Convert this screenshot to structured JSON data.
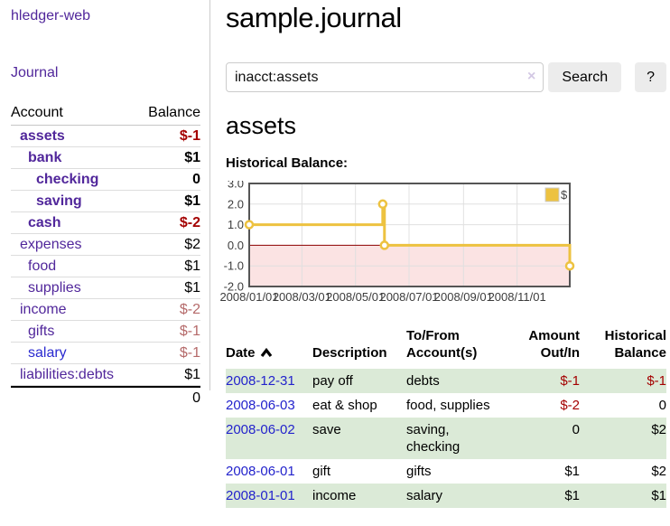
{
  "colors": {
    "link_purple": "#51279b",
    "link_blue": "#2a2ad0",
    "negative_strong": "#a40000",
    "negative_muted": "#b56a6a",
    "row_stripe_green": "#dbead7",
    "chart_gold": "#edc240"
  },
  "sidebar": {
    "brand": "hledger-web",
    "nav": {
      "journal": "Journal"
    },
    "accounts": {
      "col_account": "Account",
      "col_balance": "Balance",
      "rows": [
        {
          "label": "assets",
          "indent": 0,
          "bold": true,
          "balance": "$-1",
          "balance_style": "neg-strong",
          "link_style": "visited"
        },
        {
          "label": "bank",
          "indent": 1,
          "bold": true,
          "balance": "$1",
          "balance_style": "normal",
          "link_style": "visited"
        },
        {
          "label": "checking",
          "indent": 2,
          "bold": true,
          "balance": "0",
          "balance_style": "normal",
          "link_style": "visited"
        },
        {
          "label": "saving",
          "indent": 2,
          "bold": true,
          "balance": "$1",
          "balance_style": "normal",
          "link_style": "visited"
        },
        {
          "label": "cash",
          "indent": 1,
          "bold": true,
          "balance": "$-2",
          "balance_style": "neg-strong",
          "link_style": "visited"
        },
        {
          "label": "expenses",
          "indent": 0,
          "bold": false,
          "balance": "$2",
          "balance_style": "normal",
          "link_style": "visited"
        },
        {
          "label": "food",
          "indent": 1,
          "bold": false,
          "balance": "$1",
          "balance_style": "normal",
          "link_style": "visited"
        },
        {
          "label": "supplies",
          "indent": 1,
          "bold": false,
          "balance": "$1",
          "balance_style": "normal",
          "link_style": "visited"
        },
        {
          "label": "income",
          "indent": 0,
          "bold": false,
          "balance": "$-2",
          "balance_style": "neg-muted",
          "link_style": "visited"
        },
        {
          "label": "gifts",
          "indent": 1,
          "bold": false,
          "balance": "$-1",
          "balance_style": "neg-muted",
          "link_style": "visited"
        },
        {
          "label": "salary",
          "indent": 1,
          "bold": false,
          "balance": "$-1",
          "balance_style": "neg-muted",
          "link_style": "unvisited"
        },
        {
          "label": "liabilities:debts",
          "indent": 0,
          "bold": false,
          "balance": "$1",
          "balance_style": "normal",
          "link_style": "visited"
        }
      ],
      "total": "0"
    }
  },
  "main": {
    "title": "sample.journal",
    "search": {
      "value": "inacct:assets",
      "clear_icon": "×",
      "search_button": "Search",
      "help_button": "?"
    },
    "account_heading": "assets",
    "chart_heading": "Historical Balance:"
  },
  "chart_data": {
    "type": "line",
    "title": "Historical Balance",
    "x_type": "date",
    "xlim": [
      "2008-01-01",
      "2008-12-31"
    ],
    "ylim": [
      -2,
      3
    ],
    "y_ticks": [
      {
        "value": 3,
        "label": "3.0"
      },
      {
        "value": 2,
        "label": "2.0"
      },
      {
        "value": 1,
        "label": "1.0"
      },
      {
        "value": 0,
        "label": "0.0"
      },
      {
        "value": -1,
        "label": "-1.0"
      },
      {
        "value": -2,
        "label": "-2.0"
      }
    ],
    "x_ticks": [
      {
        "date": "2008-01-01",
        "label": "2008/01/01"
      },
      {
        "date": "2008-03-01",
        "label": "2008/03/01"
      },
      {
        "date": "2008-05-01",
        "label": "2008/05/01"
      },
      {
        "date": "2008-07-01",
        "label": "2008/07/01"
      },
      {
        "date": "2008-09-01",
        "label": "2008/09/01"
      },
      {
        "date": "2008-11-01",
        "label": "2008/11/01"
      }
    ],
    "series": [
      {
        "name": "$",
        "color": "#edc240",
        "step": true,
        "points": [
          [
            "2008-01-01",
            1
          ],
          [
            "2008-06-01",
            2
          ],
          [
            "2008-06-03",
            0
          ],
          [
            "2008-12-31",
            -1
          ]
        ]
      }
    ],
    "legend": {
      "label": "$",
      "position": "top-right"
    },
    "grid": true,
    "grid_color": "#e0e0e0",
    "zero_line_color": "#8b0000",
    "negative_region_color": "#fbe3e3",
    "border_color": "#555555"
  },
  "register": {
    "headers": {
      "date": "Date",
      "description": "Description",
      "accounts": "To/From Account(s)",
      "amount": "Amount Out/In",
      "balance": "Historical Balance"
    },
    "rows": [
      {
        "date": "2008-12-31",
        "description": "pay off",
        "accounts": "debts",
        "amount": "$-1",
        "amount_negative": true,
        "balance": "$-1",
        "balance_negative": true
      },
      {
        "date": "2008-06-03",
        "description": "eat & shop",
        "accounts": "food, supplies",
        "amount": "$-2",
        "amount_negative": true,
        "balance": "0",
        "balance_negative": false
      },
      {
        "date": "2008-06-02",
        "description": "save",
        "accounts": "saving, checking",
        "amount": "0",
        "amount_negative": false,
        "balance": "$2",
        "balance_negative": false
      },
      {
        "date": "2008-06-01",
        "description": "gift",
        "accounts": "gifts",
        "amount": "$1",
        "amount_negative": false,
        "balance": "$2",
        "balance_negative": false
      },
      {
        "date": "2008-01-01",
        "description": "income",
        "accounts": "salary",
        "amount": "$1",
        "amount_negative": false,
        "balance": "$1",
        "balance_negative": false
      }
    ]
  }
}
